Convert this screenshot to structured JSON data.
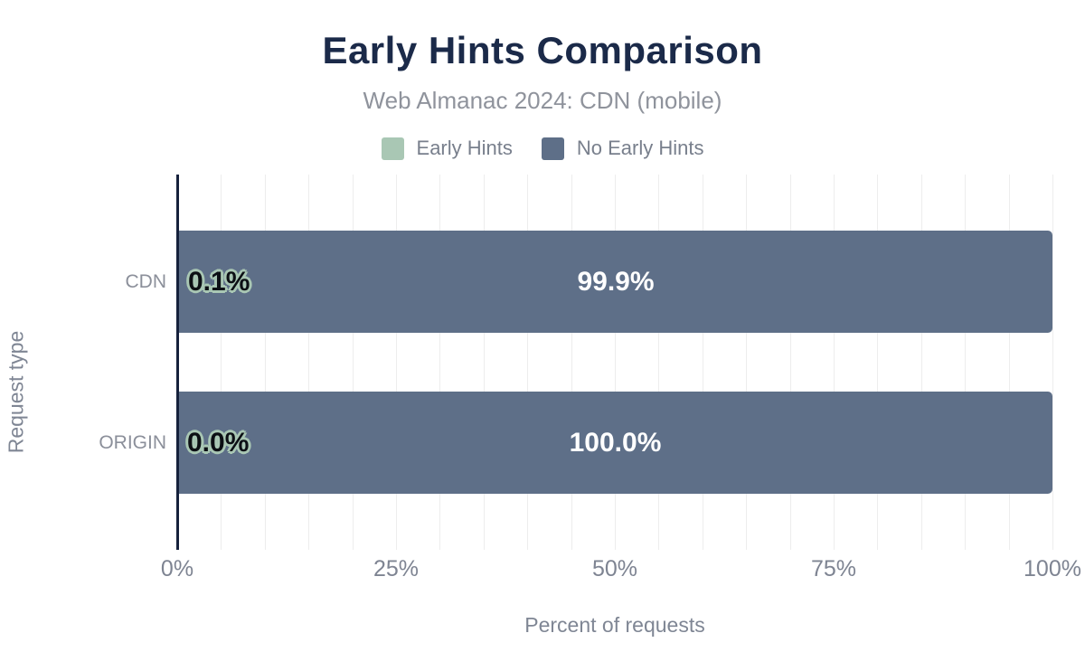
{
  "header": {
    "title": "Early Hints Comparison",
    "subtitle": "Web Almanac 2024: CDN (mobile)"
  },
  "legend": {
    "items": [
      {
        "label": "Early Hints",
        "color": "#a9c7b4"
      },
      {
        "label": "No Early Hints",
        "color": "#5e6f88"
      }
    ]
  },
  "chart_data": {
    "type": "bar",
    "orientation": "horizontal",
    "stacked": true,
    "title": "Early Hints Comparison",
    "subtitle": "Web Almanac 2024: CDN (mobile)",
    "categories": [
      "CDN",
      "ORIGIN"
    ],
    "series": [
      {
        "name": "Early Hints",
        "color": "#a9c7b4",
        "values": [
          0.1,
          0.0
        ],
        "labels": [
          "0.1%",
          "0.0%"
        ]
      },
      {
        "name": "No Early Hints",
        "color": "#5e6f88",
        "values": [
          99.9,
          100.0
        ],
        "labels": [
          "99.9%",
          "100.0%"
        ]
      }
    ],
    "xlabel": "Percent of requests",
    "ylabel": "Request type",
    "xlim": [
      0,
      100
    ],
    "x_ticks": [
      {
        "value": 0,
        "label": "0%"
      },
      {
        "value": 25,
        "label": "25%"
      },
      {
        "value": 50,
        "label": "50%"
      },
      {
        "value": 75,
        "label": "75%"
      },
      {
        "value": 100,
        "label": "100%"
      }
    ],
    "minor_grid_step": 5,
    "grid": true,
    "legend_position": "top"
  },
  "colors": {
    "title": "#1b2a49",
    "subtitle": "#8f939c",
    "axis_line": "#16213c",
    "gridline": "#ededed",
    "tick_label": "#7e8492",
    "category_label": "#8b8f9a",
    "value_label_inside": "#ffffff",
    "value_label_outline": "#a9c7b4",
    "background": "#ffffff"
  }
}
